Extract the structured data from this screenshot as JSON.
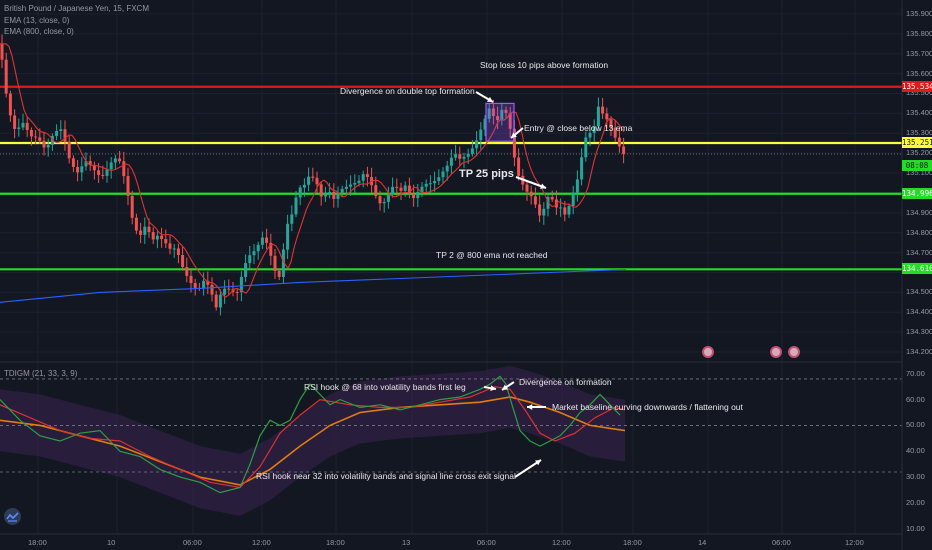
{
  "window": {
    "symbol_label": "British Pound / Japanese Yen, 15, FXCM",
    "ema13_label": "EMA (13, close, 0)",
    "ema800_label": "EMA (800, close, 0)",
    "indicator_label": "TDIGM (21, 33, 3, 9)"
  },
  "colors": {
    "background": "#131722",
    "red_line": "#e31919",
    "yellow_line": "#ffff33",
    "green_line": "#22dd22",
    "ema13": "#e0342f",
    "ema800": "#2962ff",
    "candle_up": "#26a69a",
    "candle_down": "#ef5350",
    "rsi_line": "#2e9e44",
    "signal_line": "#e03030",
    "baseline": "#e07d10",
    "band_fill": "#3a2350",
    "box_purple": "#9b59ff"
  },
  "annotations": {
    "stop_loss": "Stop loss 10 pips above formation",
    "divergence_top": "Divergence on double top formation",
    "entry": "Entry @ close below 13 ema",
    "tp1": "TP 25 pips",
    "tp2": "TP 2 @ 800 ema not reached",
    "rsi_hook_68": "RSI hook @ 68 into volatility bands first leg",
    "divergence_formation": "Divergence on formation",
    "baseline_curving": "Market baseline curving downwards / flattening out",
    "rsi_hook_32": "RSI hook near 32 into volatility bands and signal line cross exit signal"
  },
  "chart_data": [
    {
      "type": "candlestick",
      "title": "British Pound / Japanese Yen, 15, FXCM",
      "price_axis_ticks": [
        "135.900",
        "135.800",
        "135.700",
        "135.600",
        "135.500",
        "135.400",
        "135.300",
        "135.200",
        "135.100",
        "135.000",
        "134.900",
        "134.800",
        "134.700",
        "134.600",
        "134.500",
        "134.400",
        "134.300",
        "134.200"
      ],
      "ylim": [
        134.15,
        135.97
      ],
      "time_axis_ticks": [
        "18:00",
        "10",
        "06:00",
        "12:00",
        "18:00",
        "13",
        "06:00",
        "12:00",
        "18:00",
        "14",
        "06:00",
        "12:00"
      ],
      "horizontal_levels": [
        {
          "label": "135.534",
          "value": 135.534,
          "color": "#e31919"
        },
        {
          "label": "135.251",
          "value": 135.251,
          "color": "#ffff33"
        },
        {
          "label": "134.996",
          "value": 134.996,
          "color": "#22dd22"
        },
        {
          "label": "134.616",
          "value": 134.616,
          "color": "#22dd22"
        }
      ],
      "last_price": {
        "value": 135.196,
        "countdown": "08:08"
      },
      "close_path": [
        [
          0,
          135.75
        ],
        [
          4,
          135.6
        ],
        [
          8,
          135.45
        ],
        [
          12,
          135.38
        ],
        [
          16,
          135.3
        ],
        [
          22,
          135.34
        ],
        [
          30,
          135.28
        ],
        [
          38,
          135.3
        ],
        [
          46,
          135.22
        ],
        [
          54,
          135.28
        ],
        [
          62,
          135.32
        ],
        [
          70,
          135.18
        ],
        [
          78,
          135.1
        ],
        [
          86,
          135.14
        ],
        [
          94,
          135.12
        ],
        [
          102,
          135.1
        ],
        [
          110,
          135.14
        ],
        [
          118,
          135.16
        ],
        [
          122,
          135.12
        ],
        [
          128,
          135.0
        ],
        [
          134,
          134.85
        ],
        [
          140,
          134.78
        ],
        [
          146,
          134.82
        ],
        [
          152,
          134.75
        ],
        [
          158,
          134.8
        ],
        [
          164,
          134.78
        ],
        [
          170,
          134.72
        ],
        [
          176,
          134.7
        ],
        [
          182,
          134.62
        ],
        [
          188,
          134.58
        ],
        [
          194,
          134.55
        ],
        [
          198,
          134.52
        ],
        [
          204,
          134.55
        ],
        [
          210,
          134.5
        ],
        [
          216,
          134.42
        ],
        [
          220,
          134.5
        ],
        [
          226,
          134.55
        ],
        [
          232,
          134.5
        ],
        [
          238,
          134.48
        ],
        [
          244,
          134.62
        ],
        [
          250,
          134.7
        ],
        [
          256,
          134.74
        ],
        [
          262,
          134.78
        ],
        [
          268,
          134.72
        ],
        [
          274,
          134.6
        ],
        [
          280,
          134.58
        ],
        [
          286,
          134.85
        ],
        [
          292,
          134.9
        ],
        [
          298,
          135.0
        ],
        [
          304,
          135.02
        ],
        [
          310,
          135.1
        ],
        [
          316,
          135.08
        ],
        [
          322,
          134.98
        ],
        [
          328,
          135.0
        ],
        [
          334,
          134.95
        ],
        [
          340,
          135.02
        ],
        [
          346,
          135.05
        ],
        [
          352,
          135.06
        ],
        [
          358,
          135.04
        ],
        [
          364,
          135.08
        ],
        [
          370,
          135.06
        ],
        [
          376,
          135.0
        ],
        [
          382,
          134.95
        ],
        [
          388,
          134.98
        ],
        [
          394,
          135.02
        ],
        [
          400,
          135.0
        ],
        [
          406,
          135.06
        ],
        [
          412,
          134.98
        ],
        [
          418,
          135.0
        ],
        [
          424,
          135.02
        ],
        [
          430,
          135.04
        ],
        [
          436,
          135.08
        ],
        [
          442,
          135.12
        ],
        [
          448,
          135.14
        ],
        [
          454,
          135.18
        ],
        [
          460,
          135.16
        ],
        [
          466,
          135.2
        ],
        [
          472,
          135.24
        ],
        [
          478,
          135.28
        ],
        [
          484,
          135.34
        ],
        [
          490,
          135.42
        ],
        [
          496,
          135.36
        ],
        [
          502,
          135.44
        ],
        [
          508,
          135.4
        ],
        [
          512,
          135.25
        ],
        [
          516,
          135.1
        ],
        [
          520,
          135.05
        ],
        [
          526,
          135.02
        ],
        [
          532,
          135.0
        ],
        [
          536,
          134.95
        ],
        [
          540,
          134.88
        ],
        [
          546,
          134.92
        ],
        [
          550,
          135.0
        ],
        [
          554,
          134.92
        ],
        [
          560,
          134.95
        ],
        [
          566,
          134.9
        ],
        [
          572,
          134.98
        ],
        [
          576,
          135.02
        ],
        [
          580,
          135.1
        ],
        [
          584,
          135.26
        ],
        [
          588,
          135.3
        ],
        [
          594,
          135.35
        ],
        [
          598,
          135.45
        ],
        [
          602,
          135.4
        ],
        [
          608,
          135.34
        ],
        [
          614,
          135.28
        ],
        [
          620,
          135.24
        ],
        [
          626,
          135.2
        ]
      ],
      "ema800_path": [
        [
          0,
          134.45
        ],
        [
          100,
          134.5
        ],
        [
          200,
          134.52
        ],
        [
          300,
          134.55
        ],
        [
          400,
          134.57
        ],
        [
          500,
          134.59
        ],
        [
          600,
          134.61
        ],
        [
          626,
          134.615
        ]
      ]
    },
    {
      "type": "line",
      "title": "TDIGM (21, 33, 3, 9)",
      "yaxis_ticks": [
        "70.00",
        "60.00",
        "50.00",
        "40.00",
        "30.00",
        "20.00",
        "10.00"
      ],
      "ylim": [
        8,
        73
      ],
      "reference_levels": [
        68,
        50,
        32
      ],
      "rsi_path": [
        [
          0,
          60
        ],
        [
          20,
          52
        ],
        [
          40,
          46
        ],
        [
          60,
          44
        ],
        [
          80,
          47
        ],
        [
          100,
          48
        ],
        [
          120,
          40
        ],
        [
          140,
          38
        ],
        [
          160,
          33
        ],
        [
          180,
          30
        ],
        [
          200,
          28
        ],
        [
          220,
          24
        ],
        [
          240,
          26
        ],
        [
          250,
          35
        ],
        [
          260,
          46
        ],
        [
          270,
          52
        ],
        [
          280,
          50
        ],
        [
          290,
          52
        ],
        [
          300,
          60
        ],
        [
          310,
          66
        ],
        [
          320,
          62
        ],
        [
          330,
          58
        ],
        [
          340,
          60
        ],
        [
          360,
          57
        ],
        [
          380,
          58
        ],
        [
          400,
          56
        ],
        [
          420,
          58
        ],
        [
          440,
          60
        ],
        [
          460,
          61
        ],
        [
          480,
          64
        ],
        [
          490,
          66
        ],
        [
          500,
          69
        ],
        [
          506,
          66
        ],
        [
          512,
          58
        ],
        [
          520,
          48
        ],
        [
          530,
          44
        ],
        [
          540,
          42
        ],
        [
          550,
          44
        ],
        [
          560,
          46
        ],
        [
          570,
          50
        ],
        [
          580,
          55
        ],
        [
          590,
          58
        ],
        [
          600,
          62
        ],
        [
          610,
          58
        ],
        [
          620,
          54
        ]
      ],
      "signal_path": [
        [
          0,
          58
        ],
        [
          30,
          53
        ],
        [
          60,
          48
        ],
        [
          90,
          45
        ],
        [
          120,
          44
        ],
        [
          150,
          38
        ],
        [
          180,
          33
        ],
        [
          210,
          28
        ],
        [
          240,
          26
        ],
        [
          260,
          34
        ],
        [
          280,
          47
        ],
        [
          300,
          54
        ],
        [
          320,
          60
        ],
        [
          350,
          58
        ],
        [
          380,
          57
        ],
        [
          410,
          57
        ],
        [
          440,
          59
        ],
        [
          470,
          61
        ],
        [
          495,
          65
        ],
        [
          510,
          64
        ],
        [
          525,
          56
        ],
        [
          540,
          47
        ],
        [
          555,
          44
        ],
        [
          575,
          47
        ],
        [
          595,
          53
        ],
        [
          615,
          57
        ],
        [
          625,
          56
        ]
      ],
      "baseline_path": [
        [
          0,
          52
        ],
        [
          40,
          50
        ],
        [
          80,
          46
        ],
        [
          120,
          42
        ],
        [
          160,
          36
        ],
        [
          200,
          30
        ],
        [
          240,
          27
        ],
        [
          270,
          33
        ],
        [
          300,
          42
        ],
        [
          330,
          50
        ],
        [
          360,
          55
        ],
        [
          400,
          57
        ],
        [
          440,
          58
        ],
        [
          480,
          59
        ],
        [
          510,
          61
        ],
        [
          530,
          59
        ],
        [
          560,
          55
        ],
        [
          590,
          50
        ],
        [
          625,
          48
        ]
      ]
    }
  ]
}
